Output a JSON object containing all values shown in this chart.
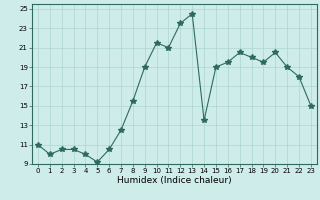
{
  "x": [
    0,
    1,
    2,
    3,
    4,
    5,
    6,
    7,
    8,
    9,
    10,
    11,
    12,
    13,
    14,
    15,
    16,
    17,
    18,
    19,
    20,
    21,
    22,
    23
  ],
  "y": [
    11,
    10,
    10.5,
    10.5,
    10,
    9.2,
    10.5,
    12.5,
    15.5,
    19,
    21.5,
    21,
    23.5,
    24.5,
    13.5,
    19,
    19.5,
    20.5,
    20,
    19.5,
    20.5,
    19,
    18,
    15
  ],
  "title": "",
  "xlabel": "Humidex (Indice chaleur)",
  "xlim": [
    -0.5,
    23.5
  ],
  "ylim": [
    9,
    25.5
  ],
  "yticks": [
    9,
    11,
    13,
    15,
    17,
    19,
    21,
    23,
    25
  ],
  "xticks": [
    0,
    1,
    2,
    3,
    4,
    5,
    6,
    7,
    8,
    9,
    10,
    11,
    12,
    13,
    14,
    15,
    16,
    17,
    18,
    19,
    20,
    21,
    22,
    23
  ],
  "line_color": "#2e6b5e",
  "bg_color": "#ceecea",
  "grid_color": "#aed4d0",
  "marker": "*",
  "marker_size": 4,
  "tick_fontsize": 5.0,
  "xlabel_fontsize": 6.5
}
